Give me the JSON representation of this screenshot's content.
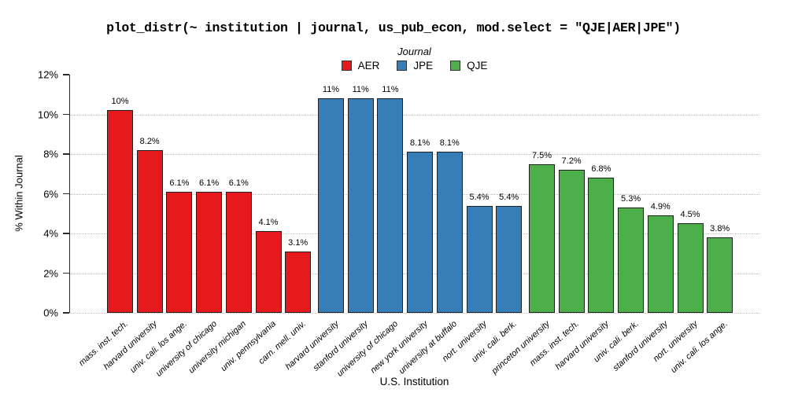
{
  "title": "plot_distr(~ institution | journal, us_pub_econ, mod.select = \"QJE|AER|JPE\")",
  "legend": {
    "title": "Journal",
    "entries": [
      {
        "label": "AER",
        "color": "#E41A1C"
      },
      {
        "label": "JPE",
        "color": "#377EB8"
      },
      {
        "label": "QJE",
        "color": "#4DAF4A"
      }
    ]
  },
  "chart_data": {
    "type": "bar",
    "title": "plot_distr(~ institution | journal, us_pub_econ, mod.select = \"QJE|AER|JPE\")",
    "xlabel": "U.S. Institution",
    "ylabel": "% Within Journal",
    "ylim": [
      0,
      12
    ],
    "yticks": [
      "0%",
      "2%",
      "4%",
      "6%",
      "8%",
      "10%",
      "12%"
    ],
    "grid": "horizontal dotted lines at 0%,2%,4%,6%,8%,10%",
    "legend_position": "top-center",
    "groups": [
      {
        "journal": "AER",
        "color": "#E41A1C",
        "bars": [
          {
            "institution": "mass. inst. tech.",
            "value": 10.2,
            "label": "10%"
          },
          {
            "institution": "harvard university",
            "value": 8.2,
            "label": "8.2%"
          },
          {
            "institution": "univ. cali. los ange.",
            "value": 6.1,
            "label": "6.1%"
          },
          {
            "institution": "university of chicago",
            "value": 6.1,
            "label": "6.1%"
          },
          {
            "institution": "university michigan",
            "value": 6.1,
            "label": "6.1%"
          },
          {
            "institution": "univ. pennsylvania",
            "value": 4.1,
            "label": "4.1%"
          },
          {
            "institution": "carn. mell. univ.",
            "value": 3.1,
            "label": "3.1%"
          }
        ]
      },
      {
        "journal": "JPE",
        "color": "#377EB8",
        "bars": [
          {
            "institution": "harvard university",
            "value": 10.8,
            "label": "11%"
          },
          {
            "institution": "stanford university",
            "value": 10.8,
            "label": "11%"
          },
          {
            "institution": "university of chicago",
            "value": 10.8,
            "label": "11%"
          },
          {
            "institution": "new york university",
            "value": 8.1,
            "label": "8.1%"
          },
          {
            "institution": "university at buffalo",
            "value": 8.1,
            "label": "8.1%"
          },
          {
            "institution": "nort. university",
            "value": 5.4,
            "label": "5.4%"
          },
          {
            "institution": "univ. cali. berk.",
            "value": 5.4,
            "label": "5.4%"
          }
        ]
      },
      {
        "journal": "QJE",
        "color": "#4DAF4A",
        "bars": [
          {
            "institution": "princeton university",
            "value": 7.5,
            "label": "7.5%"
          },
          {
            "institution": "mass. inst. tech.",
            "value": 7.2,
            "label": "7.2%"
          },
          {
            "institution": "harvard university",
            "value": 6.8,
            "label": "6.8%"
          },
          {
            "institution": "univ. cali. berk.",
            "value": 5.3,
            "label": "5.3%"
          },
          {
            "institution": "stanford university",
            "value": 4.9,
            "label": "4.9%"
          },
          {
            "institution": "nort. university",
            "value": 4.5,
            "label": "4.5%"
          },
          {
            "institution": "univ. cali. los ange.",
            "value": 3.8,
            "label": "3.8%"
          }
        ]
      }
    ]
  }
}
